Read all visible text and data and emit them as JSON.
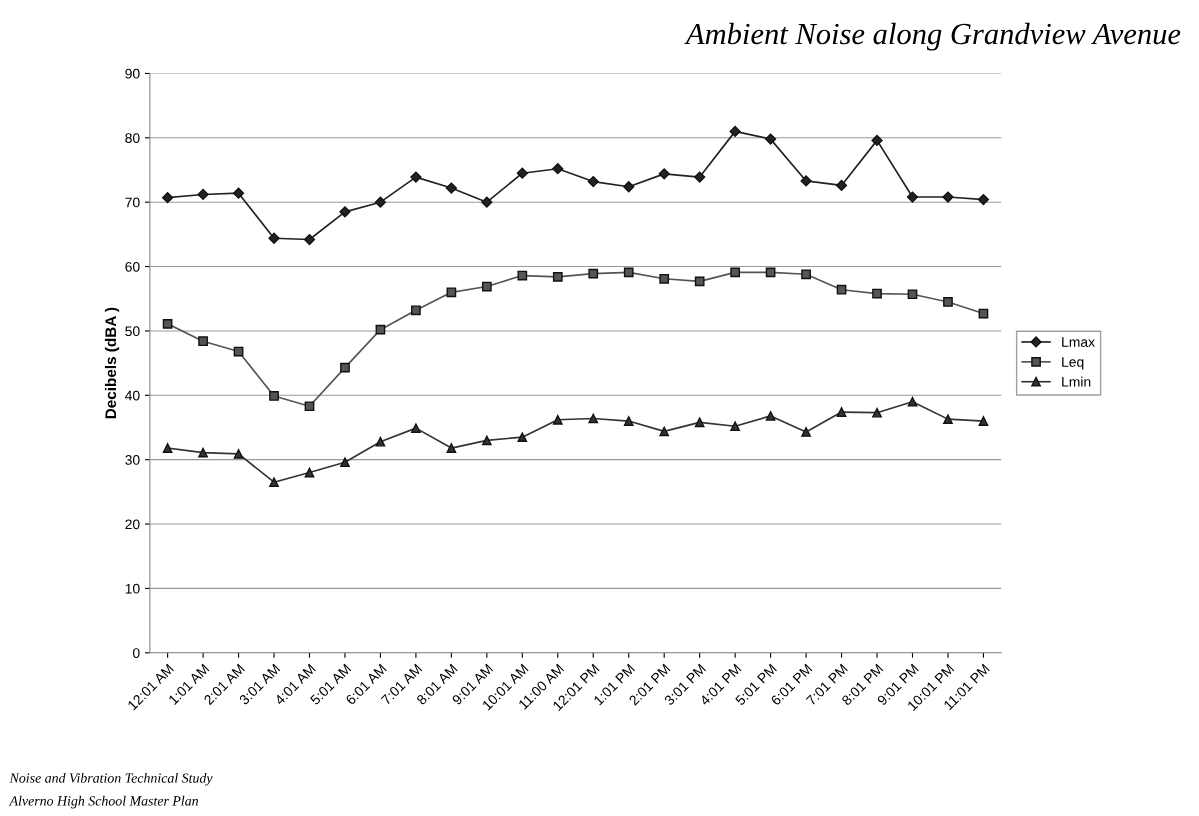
{
  "chart_data": {
    "type": "line",
    "title": "Ambient Noise along Grandview Avenue",
    "ylabel": "Decibels (dBA )",
    "categories": [
      "12:01 AM",
      "1:01 AM",
      "2:01 AM",
      "3:01 AM",
      "4:01 AM",
      "5:01 AM",
      "6:01 AM",
      "7:01 AM",
      "8:01 AM",
      "9:01 AM",
      "10:01 AM",
      "11:00 AM",
      "12:01 PM",
      "1:01 PM",
      "2:01 PM",
      "3:01 PM",
      "4:01 PM",
      "5:01 PM",
      "6:01 PM",
      "7:01 PM",
      "8:01 PM",
      "9:01 PM",
      "10:01 PM",
      "11:01 PM"
    ],
    "series": [
      {
        "name": "Lmax",
        "color": "#222222",
        "marker": "diamond",
        "values": [
          70.7,
          71.2,
          71.4,
          64.4,
          64.2,
          68.5,
          70.0,
          73.9,
          72.2,
          70.0,
          74.5,
          75.2,
          73.2,
          72.4,
          74.4,
          73.9,
          81.0,
          79.8,
          73.3,
          72.6,
          79.6,
          70.8,
          70.8,
          70.4
        ]
      },
      {
        "name": "Leq",
        "color": "#555555",
        "marker": "square",
        "values": [
          51.1,
          48.4,
          46.8,
          39.9,
          38.3,
          44.3,
          50.2,
          53.2,
          56.0,
          56.9,
          58.6,
          58.4,
          58.9,
          59.1,
          58.1,
          57.7,
          59.1,
          59.1,
          58.8,
          56.4,
          55.8,
          55.7,
          54.5,
          52.7
        ]
      },
      {
        "name": "Lmin",
        "color": "#333333",
        "marker": "triangle",
        "values": [
          31.8,
          31.1,
          30.9,
          26.5,
          28.0,
          29.6,
          32.8,
          34.9,
          31.8,
          33.0,
          33.5,
          36.2,
          36.4,
          36.0,
          34.4,
          35.8,
          35.2,
          36.8,
          34.3,
          37.4,
          37.3,
          39.0,
          36.3,
          36.0
        ]
      }
    ],
    "ylim": [
      0,
      90
    ],
    "yticks": [
      0,
      10,
      20,
      30,
      40,
      50,
      60,
      70,
      80,
      90
    ],
    "grid": "y",
    "legend": "right",
    "line_style": "solid",
    "annotations": [
      "Noise and Vibration Technical Study",
      "Alverno High School Master Plan"
    ]
  }
}
